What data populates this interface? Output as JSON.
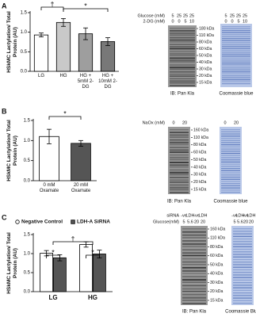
{
  "panel_labels": [
    "A",
    "B",
    "C"
  ],
  "chart_data": [
    {
      "type": "bar",
      "ylabel": "HSkMC Lactylation/ Total Protein (AU)",
      "categories": [
        "LG",
        "HG",
        "HG + 5mM 2-DG",
        "HG + 10mM 2-DG"
      ],
      "values": [
        0.93,
        1.25,
        0.96,
        0.76
      ],
      "errors": [
        0.05,
        0.1,
        0.15,
        0.1
      ],
      "colors": [
        "#ffffff",
        "#c9c9c9",
        "#9e9e9e",
        "#787878"
      ],
      "ylim": [
        0,
        1.5
      ],
      "yticks": [
        {
          "value": 0,
          "label": "0.0"
        },
        {
          "value": 0.5,
          "label": "0.5"
        },
        {
          "value": 1,
          "label": "1.0"
        },
        {
          "value": 1.5,
          "label": "1.5"
        }
      ],
      "annotations": [
        "†",
        "*"
      ]
    },
    {
      "type": "bar",
      "ylabel": "HSkMC Lactylation/ Total Protein (AU)",
      "categories": [
        "0 mM Oxamate",
        "20 mM Oxamate"
      ],
      "values": [
        1.1,
        0.93
      ],
      "errors": [
        0.18,
        0.07
      ],
      "colors": [
        "#ffffff",
        "#555555"
      ],
      "ylim": [
        0,
        1.5
      ],
      "yticks": [
        {
          "value": 0,
          "label": "0.0"
        },
        {
          "value": 0.5,
          "label": "0.5"
        },
        {
          "value": 1,
          "label": "1.0"
        },
        {
          "value": 1.5,
          "label": "1.5"
        }
      ],
      "annotations": [
        "*"
      ]
    },
    {
      "type": "grouped-bar",
      "ylabel": "HSkMC Lactylation/ Total Protein (AU)",
      "categories": [
        "LG",
        "HG"
      ],
      "series": [
        {
          "name": "Negative Control",
          "color": "#ffffff",
          "values": [
            1.01,
            1.24
          ],
          "errors": [
            0.07,
            0.07
          ]
        },
        {
          "name": "LDH-A SiRNA",
          "color": "#555555",
          "values": [
            0.89,
            0.99
          ],
          "errors": [
            0.08,
            0.1
          ]
        }
      ],
      "ylim": [
        0,
        1.5
      ],
      "yticks": [
        {
          "value": 0,
          "label": "0.0"
        },
        {
          "value": 0.5,
          "label": "0.5"
        },
        {
          "value": 1,
          "label": "1.0"
        },
        {
          "value": 1.5,
          "label": "1.5"
        }
      ],
      "annotations": [
        "*",
        "*",
        "†"
      ]
    }
  ],
  "blots": [
    {
      "header_rows": [
        {
          "label": "Glucose (mM)",
          "lanes": [
            "5",
            "25",
            "25",
            "25"
          ]
        },
        {
          "label": "2-DG (mM)",
          "lanes": [
            "0",
            "0",
            "5",
            "10"
          ]
        }
      ],
      "ladder": [
        "180 kDa",
        "110 kDa",
        "80 kDa",
        "60 kDa",
        "50 kDa",
        "40 kDa",
        "30 kDa",
        "20 kDa",
        "15 kDa"
      ],
      "captions": [
        "IB: Pan Kla",
        "Coomassie blue"
      ]
    },
    {
      "header_rows": [
        {
          "label": "NaOx (mM)",
          "lanes": [
            "0",
            "20"
          ]
        }
      ],
      "ladder": [
        "160 kDa",
        "110 kDa",
        "80 kDa",
        "60 kDa",
        "50 kDa",
        "40 kDa",
        "30 kDa",
        "20 kDa",
        "15 kDa"
      ],
      "captions": [
        "IB: Pan Kla",
        "Coomassie blue"
      ]
    },
    {
      "header_rows": [
        {
          "label": "siRNA",
          "lanes": [
            "-ve",
            "LDH",
            "-ve",
            "LDH"
          ]
        },
        {
          "label": "Glucose(mM)",
          "lanes": [
            "5",
            "5.6",
            "20",
            "20"
          ]
        }
      ],
      "ladder": [
        "160 kDa",
        "110 kDa",
        "80 kDa",
        "60 kDa",
        "50 kDa",
        "40 kDa",
        "30 kDa",
        "20 kDa",
        "15 kDa"
      ],
      "captions": [
        "IB: Pan Kla",
        "Coomassie Blue"
      ]
    }
  ]
}
